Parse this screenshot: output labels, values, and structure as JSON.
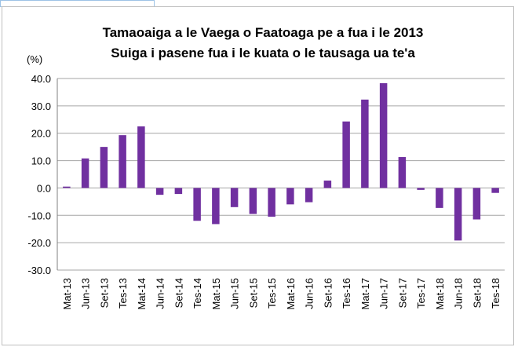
{
  "chart_data": {
    "type": "bar",
    "title": [
      "Tamaoaiga a le Vaega o Faatoaga pe a fua i le 2013",
      "Suiga i pasene fua i le kuata o le tausaga ua te'a"
    ],
    "y_label": "(%)",
    "categories": [
      "Mat-13",
      "Jun-13",
      "Set-13",
      "Tes-13",
      "Mat-14",
      "Jun-14",
      "Set-14",
      "Tes-14",
      "Mat-15",
      "Jun-15",
      "Set-15",
      "Tes-15",
      "Mat-16",
      "Jun-16",
      "Set-16",
      "Tes-16",
      "Mat-17",
      "Jun-17",
      "Set-17",
      "Tes-17",
      "Mat-18",
      "Jun-18",
      "Set-18",
      "Tes-18"
    ],
    "values": [
      0.5,
      10.8,
      15,
      19.3,
      22.5,
      -2.5,
      -2.2,
      -12,
      -13.2,
      -7,
      -9.5,
      -10.5,
      -6,
      -5.2,
      2.7,
      24.3,
      32.3,
      38.3,
      11.3,
      -0.7,
      -7.3,
      -19.2,
      -11.5,
      -1.8
    ],
    "color": "#7030a0",
    "ylim": [
      -30,
      40
    ],
    "yticks": [
      {
        "value": -30,
        "label": "-30.0"
      },
      {
        "value": -20,
        "label": "-20.0"
      },
      {
        "value": -10,
        "label": "-10.0"
      },
      {
        "value": 0,
        "label": "0.0"
      },
      {
        "value": 10,
        "label": "10.0"
      },
      {
        "value": 20,
        "label": "20.0"
      },
      {
        "value": 30,
        "label": "30.0"
      },
      {
        "value": 40,
        "label": "40.0"
      }
    ],
    "grid": true
  }
}
